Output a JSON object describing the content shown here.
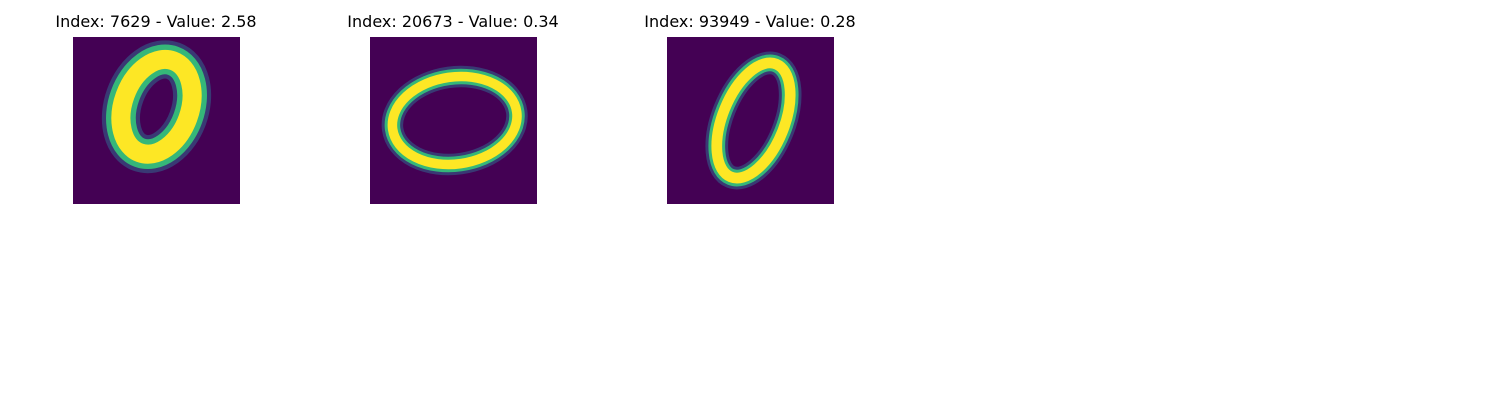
{
  "colormap": {
    "name": "viridis",
    "background": "#440154",
    "low": "#31688e",
    "mid": "#35b779",
    "high": "#fde725"
  },
  "panels": [
    {
      "title": "Index: 7629 - Value: 2.58",
      "image": "digit-zero"
    },
    {
      "title": "Index: 20673 - Value: 0.34",
      "image": "digit-zero"
    },
    {
      "title": "Index: 93949 - Value: 0.28",
      "image": "digit-zero"
    }
  ]
}
